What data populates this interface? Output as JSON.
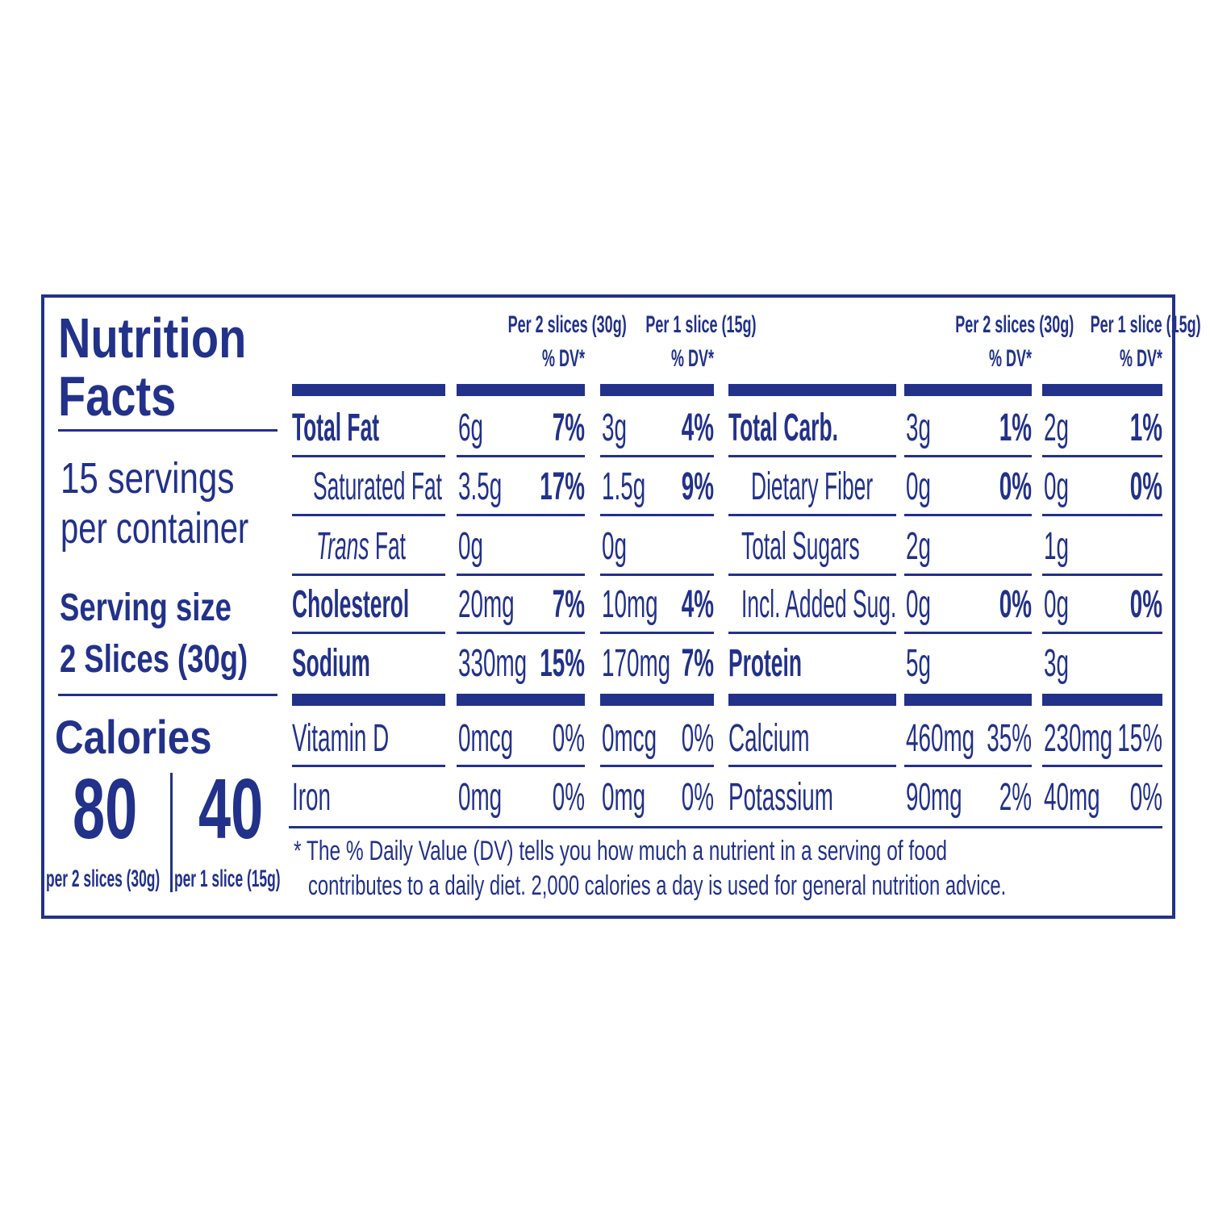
{
  "title_line1": "Nutrition",
  "title_line2": "Facts",
  "servings_line1": "15 servings",
  "servings_line2": "per container",
  "serving_size_label": "Serving size",
  "serving_size_value": "2 Slices (30g)",
  "calories": {
    "label": "Calories",
    "value_2_slices": "80",
    "value_1_slice": "40",
    "sub_2_slices": "per 2 slices (30g)",
    "sub_1_slice": "per 1 slice (15g)"
  },
  "headers": {
    "col_2_slices": "Per 2 slices (30g)",
    "col_1_slice": "Per 1 slice (15g)",
    "dv": "% DV*"
  },
  "left_rows": [
    {
      "label": "Total Fat",
      "bold": true,
      "indent": false,
      "a2": "6g",
      "d2": "7%",
      "a1": "3g",
      "d1": "4%"
    },
    {
      "label": "Saturated Fat",
      "bold": false,
      "indent": true,
      "a2": "3.5g",
      "d2": "17%",
      "a1": "1.5g",
      "d1": "9%"
    },
    {
      "label_italic": "Trans",
      "label": " Fat",
      "bold": false,
      "indent": true,
      "a2": "0g",
      "d2": "",
      "a1": "0g",
      "d1": ""
    },
    {
      "label": "Cholesterol",
      "bold": true,
      "indent": false,
      "a2": "20mg",
      "d2": "7%",
      "a1": "10mg",
      "d1": "4%"
    },
    {
      "label": "Sodium",
      "bold": true,
      "indent": false,
      "a2": "330mg",
      "d2": "15%",
      "a1": "170mg",
      "d1": "7%"
    }
  ],
  "right_rows": [
    {
      "label": "Total Carb.",
      "bold": true,
      "indent": 0,
      "a2": "3g",
      "d2": "1%",
      "a1": "2g",
      "d1": "1%"
    },
    {
      "label": "Dietary Fiber",
      "bold": false,
      "indent": 1,
      "a2": "0g",
      "d2": "0%",
      "a1": "0g",
      "d1": "0%"
    },
    {
      "label": "Total Sugars",
      "bold": false,
      "indent": 1,
      "a2": "2g",
      "d2": "",
      "a1": "1g",
      "d1": ""
    },
    {
      "label": "Incl. Added Sug.",
      "bold": false,
      "indent": 1,
      "a2": "0g",
      "d2": "0%",
      "a1": "0g",
      "d1": "0%"
    },
    {
      "label": "Protein",
      "bold": true,
      "indent": 0,
      "a2": "5g",
      "d2": "",
      "a1": "3g",
      "d1": ""
    }
  ],
  "left_minerals": [
    {
      "label": "Vitamin D",
      "a2": "0mcg",
      "d2": "0%",
      "a1": "0mcg",
      "d1": "0%"
    },
    {
      "label": "Iron",
      "a2": "0mg",
      "d2": "0%",
      "a1": "0mg",
      "d1": "0%"
    }
  ],
  "right_minerals": [
    {
      "label": "Calcium",
      "a2": "460mg",
      "d2": "35%",
      "a1": "230mg",
      "d1": "15%"
    },
    {
      "label": "Potassium",
      "a2": "90mg",
      "d2": "2%",
      "a1": "40mg",
      "d1": "0%"
    }
  ],
  "footnote_line1": "* The % Daily Value (DV) tells you how much a nutrient in a serving of food",
  "footnote_line2": "contributes to a daily diet. 2,000 calories a day is used for general nutrition advice.",
  "colors": {
    "ink": "#22318a",
    "background": "#ffffff"
  }
}
